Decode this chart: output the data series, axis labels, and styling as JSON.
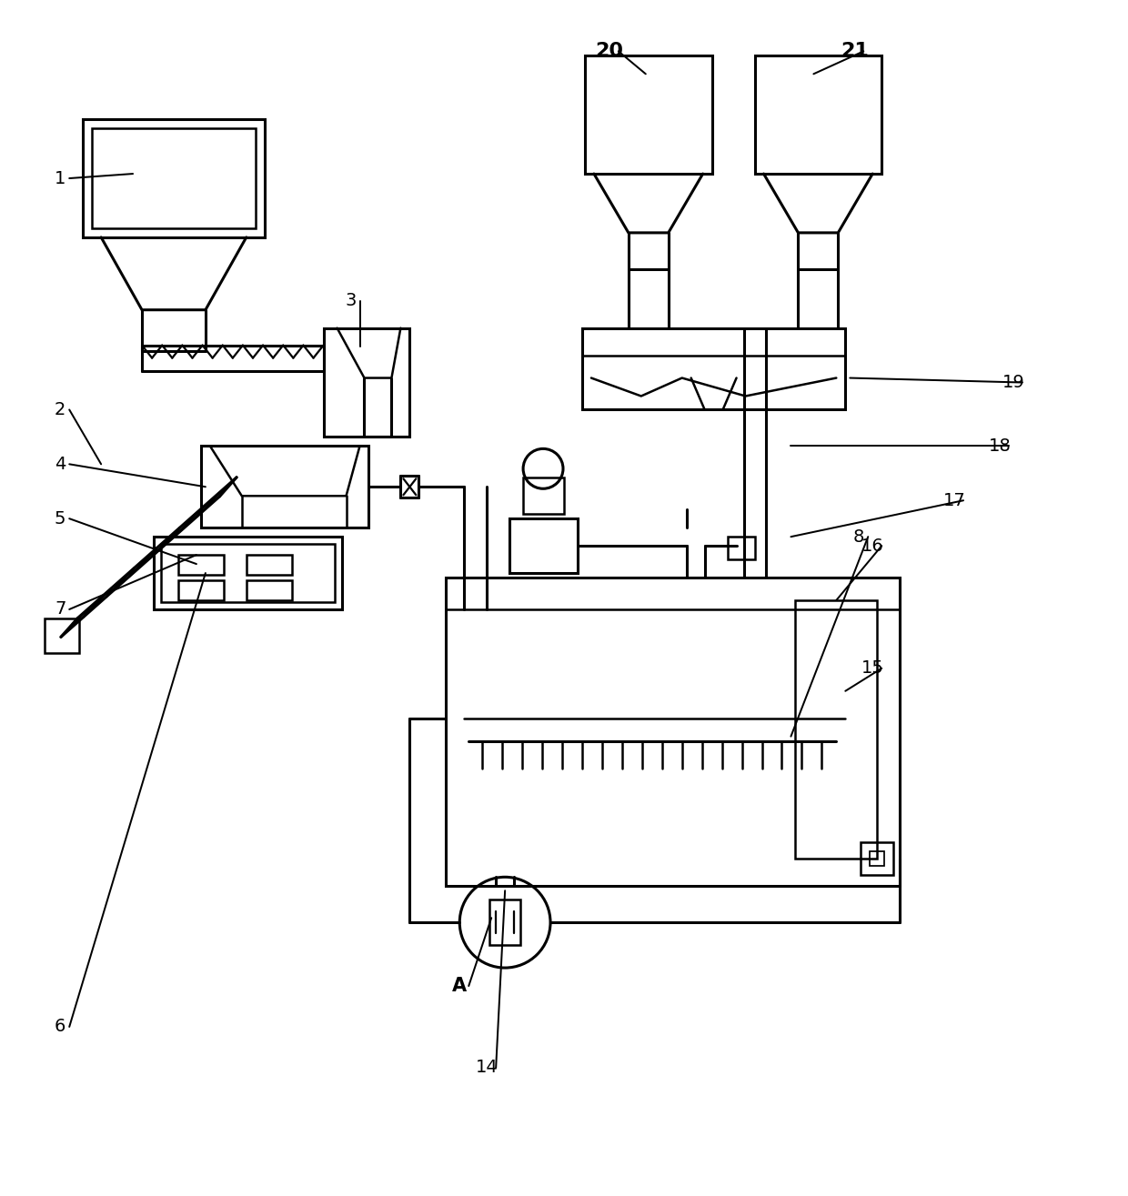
{
  "background_color": "#ffffff",
  "line_color": "#000000",
  "lw": 1.8,
  "blw": 2.2,
  "fig_width": 12.4,
  "fig_height": 13.15
}
